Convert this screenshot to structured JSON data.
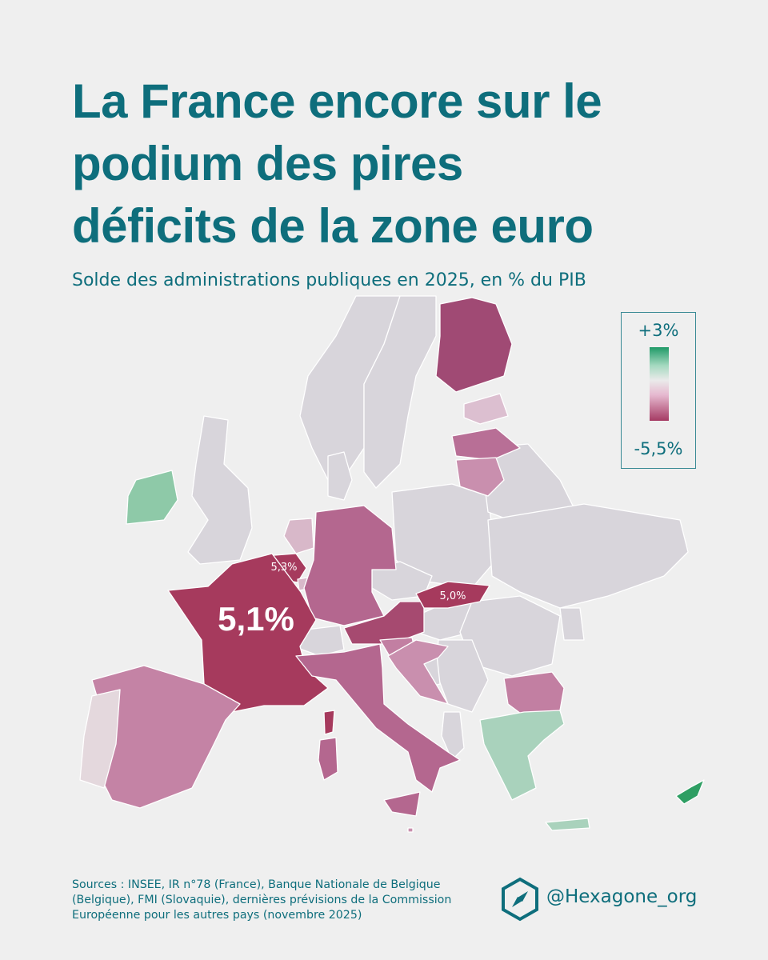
{
  "title": {
    "line1": "La France encore sur le",
    "line2": "podium des pires",
    "line3": "déficits de la zone euro"
  },
  "subtitle": "Solde des administrations publiques en 2025, en % du PIB",
  "legend": {
    "max_label": "+3%",
    "min_label": "-5,5%",
    "max_color": "#1f9a67",
    "mid_color": "#eaeaea",
    "min_color": "#a53a63"
  },
  "map_labels": {
    "france": "5,1%",
    "belgium": "5,3%",
    "slovakia": "5,0%"
  },
  "colors": {
    "title": "#0e6e7c",
    "background": "#efefef",
    "non_euro": "#d8d5db",
    "france": "#a63a5d",
    "belgium": "#a63a5d",
    "slovakia": "#a63a5d",
    "austria": "#a64a70",
    "finland": "#a04a74",
    "germany": "#b4678f",
    "italy": "#b4678f",
    "spain": "#c483a5",
    "lithuania": "#c98fae",
    "latvia": "#b86f96",
    "estonia": "#dcbfd0",
    "croatia": "#c98fae",
    "slovenia": "#c27fa2",
    "netherlands": "#d8b8c9",
    "portugal": "#e4d8dd",
    "bulgaria": "#c27fa2",
    "ireland": "#8ec9a8",
    "greece": "#a9d2bc",
    "cyprus": "#2e9e63",
    "luxembourg": "#d8b8c9",
    "malta": "#c98fae"
  },
  "sources": {
    "line1": "Sources : INSEE, IR n°78 (France), Banque Nationale de Belgique",
    "line2": "(Belgique), FMI (Slovaquie), dernières prévisions de la Commission",
    "line3": "Européenne pour les autres pays (novembre 2025)"
  },
  "brand": {
    "handle": "@Hexagone_org",
    "logo_icon": "compass-hexagon-icon"
  }
}
